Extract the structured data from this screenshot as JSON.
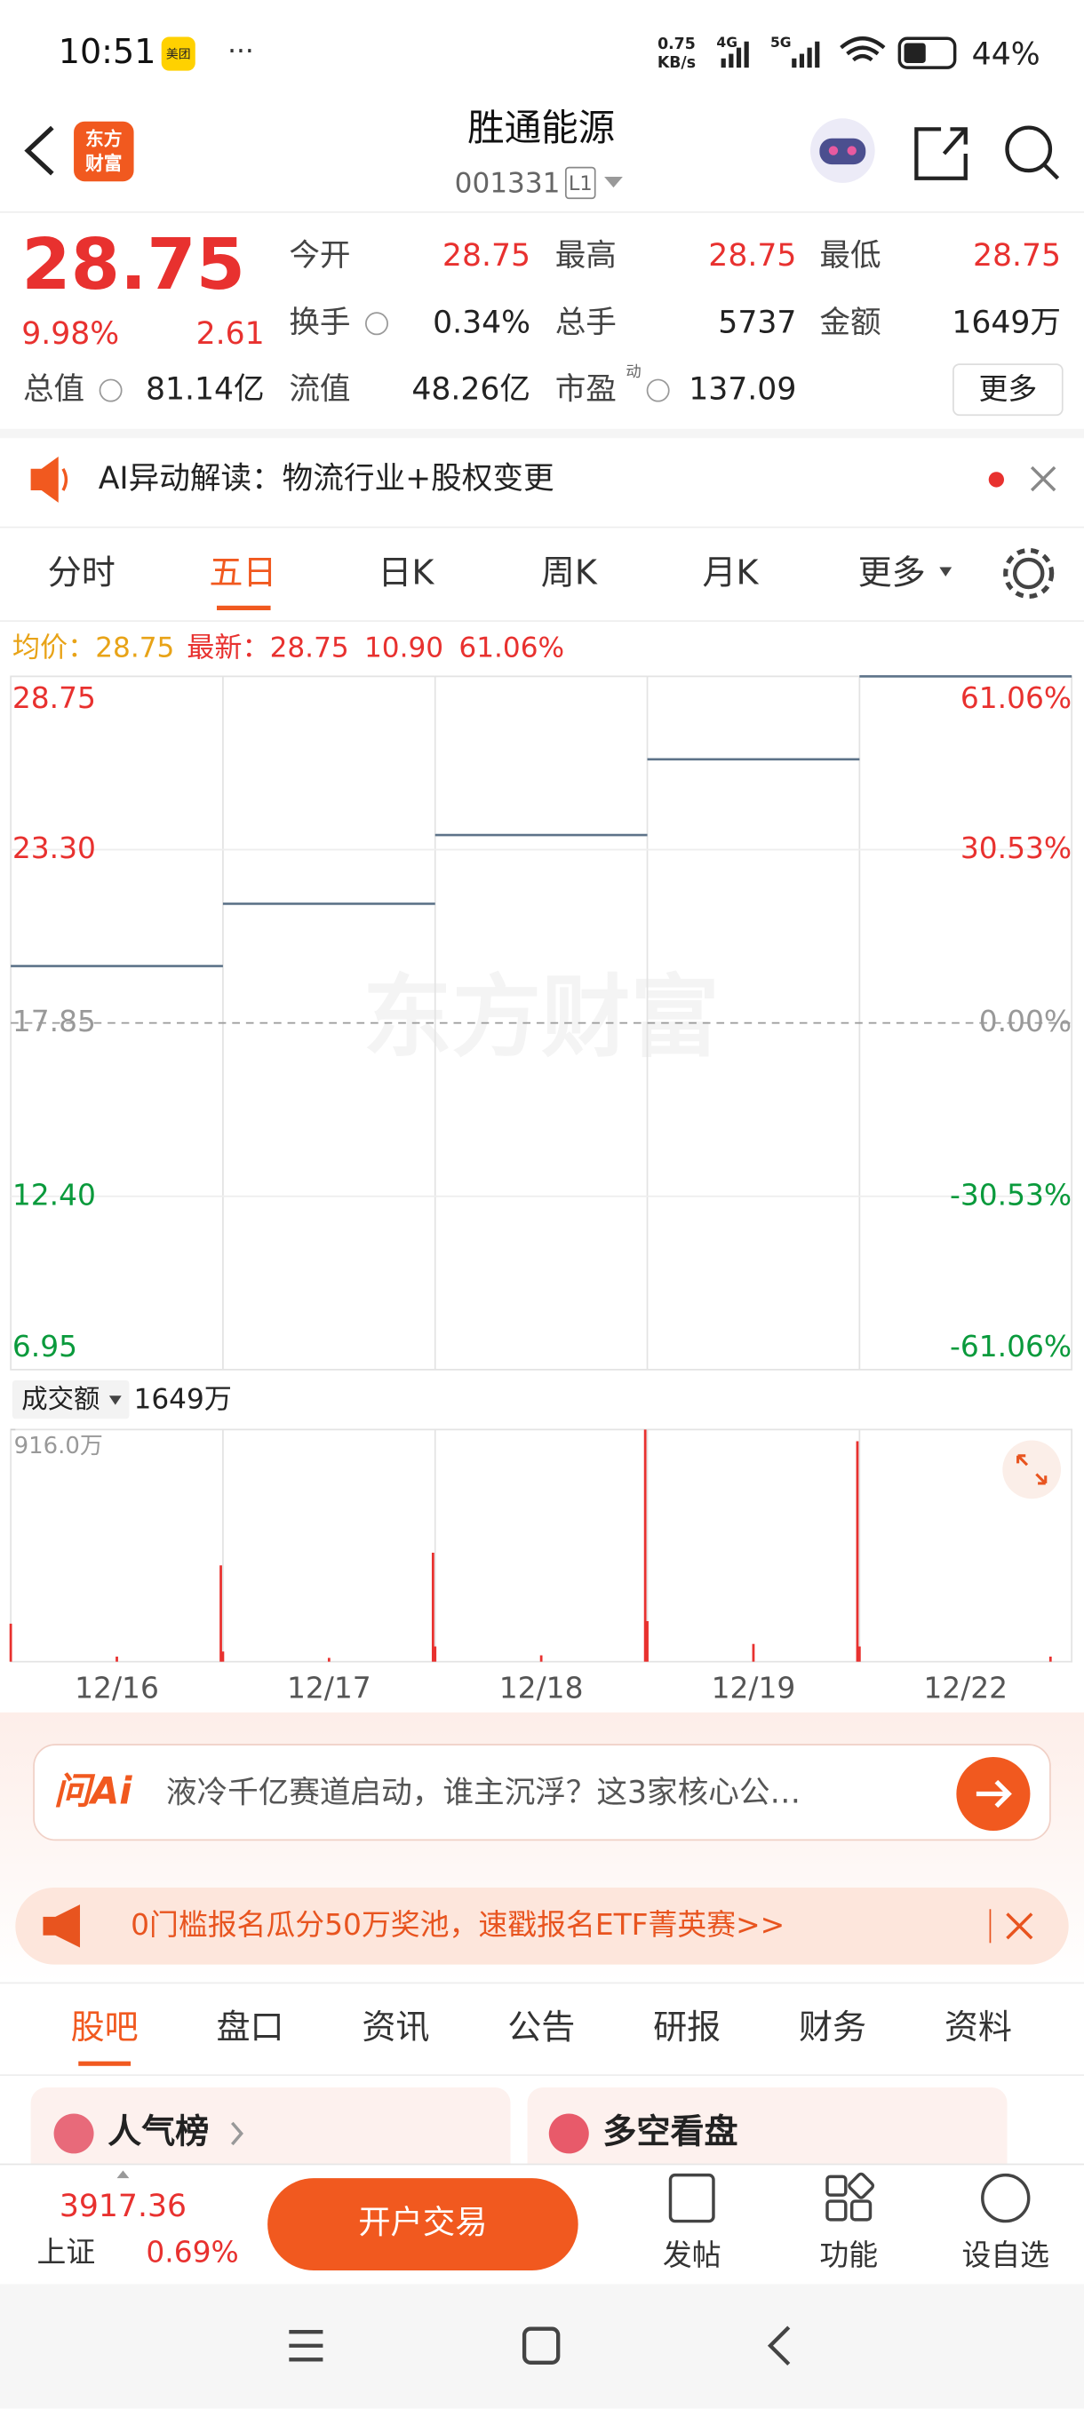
{
  "status_bar": {
    "time": "10:51",
    "app_badge": "美团",
    "more": "···",
    "net_speed": "0.75",
    "net_unit": "KB/s",
    "net_4g": "4G",
    "net_5g": "5G",
    "battery": "44%"
  },
  "header": {
    "logo_top": "东方",
    "logo_bottom": "财富",
    "name": "胜通能源",
    "code": "001331",
    "level": "L1"
  },
  "quote": {
    "price": "28.75",
    "change_pct": "9.98%",
    "change": "2.61",
    "fields": [
      {
        "label": "今开",
        "value": "28.75"
      },
      {
        "label": "最高",
        "value": "28.75"
      },
      {
        "label": "最低",
        "value": "28.75"
      },
      {
        "label": "换手",
        "value": "0.34%"
      },
      {
        "label": "总手",
        "value": "5737"
      },
      {
        "label": "金额",
        "value": "1649万"
      },
      {
        "label": "总值",
        "value": "81.14亿"
      },
      {
        "label": "流值",
        "value": "48.26亿"
      },
      {
        "label": "市盈",
        "value": "137.09",
        "mark": "动"
      }
    ],
    "more_button": "更多"
  },
  "ai_banner": {
    "text": "AI异动解读：物流行业+股权变更"
  },
  "chart_tabs": [
    "分时",
    "五日",
    "日K",
    "周K",
    "月K",
    "更多"
  ],
  "chart_info": {
    "avg_label": "均价：",
    "avg_value": "28.75",
    "latest_label": "最新：",
    "latest_value": "28.75",
    "change": "10.90",
    "change_pct": "61.06%"
  },
  "watermark": "东方财富",
  "volume_header": {
    "label": "成交额",
    "value": "1649万"
  },
  "chart_data": [
    {
      "type": "step",
      "categories": [
        "12/16",
        "12/17",
        "12/18",
        "12/19",
        "12/22"
      ],
      "values": [
        19.64,
        21.6,
        23.76,
        26.14,
        28.75
      ],
      "color": "#5d7389",
      "ylim": [
        6.95,
        28.75
      ],
      "yticks": [
        6.95,
        {
          "value": 12.4,
          "label": "12.40"
        },
        17.85,
        {
          "value": 23.3,
          "label": "23.30"
        },
        28.75
      ],
      "y2lim": [
        -61.06,
        61.06
      ],
      "y2ticks": [
        {
          "value": -61.06,
          "label": "-61.06%"
        },
        {
          "value": -30.53,
          "label": "-30.53%"
        },
        {
          "value": 0,
          "label": "0.00%"
        },
        {
          "value": 30.53,
          "label": "30.53%"
        },
        {
          "value": 61.06,
          "label": "61.06%"
        }
      ],
      "grid": true
    },
    {
      "type": "bar",
      "x": [
        0.0,
        0.5,
        0.99,
        1.0,
        1.5,
        1.99,
        2.0,
        2.5,
        2.99,
        3.0,
        3.5,
        3.99,
        4.0,
        4.9
      ],
      "values": [
        150,
        20,
        380,
        40,
        15,
        430,
        60,
        25,
        916,
        160,
        70,
        870,
        60,
        20
      ],
      "color": "#e8312f",
      "xlim": [
        0,
        5
      ],
      "ylim": [
        0,
        916
      ],
      "yticks": [
        {
          "value": 916,
          "label": "916.0万"
        }
      ]
    }
  ],
  "ask": {
    "logo": "问Ai",
    "text": "液冷千亿赛道启动，谁主沉浮？这3家核心公…"
  },
  "promo": {
    "text": "0门槛报名瓜分50万奖池，速戳报名ETF菁英赛>>"
  },
  "bottom_tabs": [
    "股吧",
    "盘口",
    "资讯",
    "公告",
    "研报",
    "财务",
    "资料"
  ],
  "cards": [
    "人气榜",
    "多空看盘"
  ],
  "footer": {
    "index_value": "3917.36",
    "index_name": "上证",
    "index_change": "0.69%",
    "trade_button": "开户交易",
    "actions": [
      "发帖",
      "功能",
      "设自选"
    ]
  }
}
